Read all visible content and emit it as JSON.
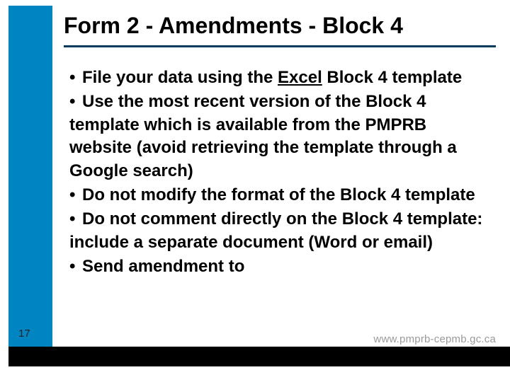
{
  "slide": {
    "title": "Form 2 - Amendments - Block 4",
    "page_number": "17",
    "footer_url": "www.pmprb-cepmb.gc.ca",
    "bullets": [
      {
        "prefix": "File your data using the ",
        "underlined": "Excel",
        "suffix": " Block 4 template"
      },
      {
        "prefix": "Use the most recent version of the Block 4 template which is available from the PMPRB website  (avoid retrieving the template through a Google search)",
        "underlined": "",
        "suffix": ""
      },
      {
        "prefix": "Do not modify the format of the Block 4 template",
        "underlined": "",
        "suffix": ""
      },
      {
        "prefix": "Do not comment directly on the Block 4 template:  include a separate document (Word or email)",
        "underlined": "",
        "suffix": ""
      },
      {
        "prefix": "Send amendment to",
        "underlined": "",
        "suffix": ""
      }
    ],
    "colors": {
      "sidebar": "#0085c3",
      "title_rule": "#003a5d",
      "footer_bar": "#000000",
      "text": "#000000",
      "url": "#9a9a9a",
      "background": "#ffffff"
    }
  }
}
